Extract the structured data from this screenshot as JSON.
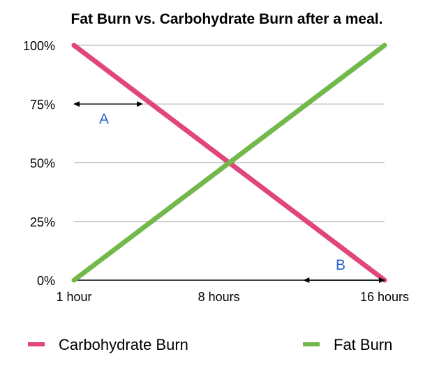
{
  "chart_data": {
    "type": "line",
    "title": "Fat Burn vs. Carbohydrate Burn after a meal.",
    "xlabel": "",
    "ylabel": "",
    "x": [
      1,
      16
    ],
    "x_ticks": [
      {
        "value": 1,
        "label": "1 hour"
      },
      {
        "value": 8,
        "label": "8 hours"
      },
      {
        "value": 16,
        "label": "16 hours"
      }
    ],
    "xlim": [
      1,
      16
    ],
    "ylim": [
      0,
      100
    ],
    "y_ticks": [
      {
        "value": 100,
        "label": "100%"
      },
      {
        "value": 75,
        "label": "75%"
      },
      {
        "value": 50,
        "label": "50%"
      },
      {
        "value": 25,
        "label": "25%"
      },
      {
        "value": 0,
        "label": "0%"
      }
    ],
    "grid": true,
    "legend_position": "bottom",
    "series": [
      {
        "name": "Carbohydrate Burn",
        "color": "#e0457b",
        "values": [
          100,
          0
        ]
      },
      {
        "name": "Fat Burn",
        "color": "#72b84b",
        "values": [
          0,
          100
        ]
      }
    ],
    "annotations": [
      {
        "label": "A",
        "arrow_from": {
          "x": 1,
          "y": 75
        },
        "arrow_to": {
          "x": 4.3,
          "y": 75
        }
      },
      {
        "label": "B",
        "arrow_from": {
          "x": 12.1,
          "y": 0
        },
        "arrow_to": {
          "x": 16,
          "y": 0
        }
      }
    ],
    "colors": {
      "grid": "#b9b9b9",
      "axis": "#000000",
      "annotation_text": "#2a62c8",
      "arrow": "#000000"
    }
  }
}
